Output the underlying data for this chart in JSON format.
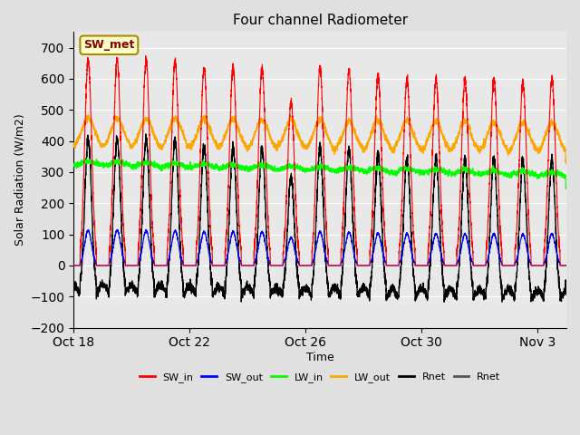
{
  "title": "Four channel Radiometer",
  "xlabel": "Time",
  "ylabel": "Solar Radiation (W/m2)",
  "ylim": [
    -200,
    750
  ],
  "yticks": [
    -200,
    -100,
    0,
    100,
    200,
    300,
    400,
    500,
    600,
    700
  ],
  "background_color": "#e0e0e0",
  "plot_bg_color": "#e8e8e8",
  "grid_color": "white",
  "annotation_text": "SW_met",
  "annotation_bg": "#ffffcc",
  "annotation_border": "#aa8800",
  "legend_entries": [
    "SW_in",
    "SW_out",
    "LW_in",
    "LW_out",
    "Rnet",
    "Rnet"
  ],
  "legend_colors": [
    "#ff0000",
    "#0000ff",
    "#00ff00",
    "#ffa500",
    "#000000",
    "#555555"
  ],
  "line_colors": {
    "SW_in": "#ff0000",
    "SW_out": "#0000ff",
    "LW_in": "#00ff00",
    "LW_out": "#ffa500",
    "Rnet": "#000000",
    "Rnet2": "#555555"
  },
  "xtick_labels": [
    "Oct 18",
    "Oct 22",
    "Oct 26",
    "Oct 30",
    "Nov 3"
  ],
  "xtick_positions": [
    0,
    4,
    8,
    12,
    16
  ],
  "num_days": 17
}
